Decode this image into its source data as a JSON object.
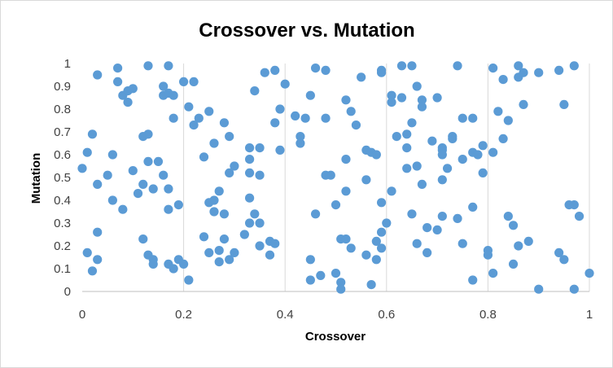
{
  "chart_data": {
    "type": "scatter",
    "title": "Crossover vs. Mutation",
    "xlabel": "Crossover",
    "ylabel": "Mutation",
    "xlim": [
      0,
      1
    ],
    "ylim": [
      0,
      1
    ],
    "x_ticks": [
      "0",
      "0.2",
      "0.4",
      "0.6",
      "0.8",
      "1"
    ],
    "y_ticks": [
      "0",
      "0.1",
      "0.2",
      "0.3",
      "0.4",
      "0.5",
      "0.6",
      "0.7",
      "0.8",
      "0.9",
      "1"
    ],
    "grid": "vertical major gridlines",
    "legend": "none",
    "marker_color": "#5b9bd5",
    "series": [
      {
        "points": [
          [
            0.0,
            0.54
          ],
          [
            0.01,
            0.61
          ],
          [
            0.01,
            0.17
          ],
          [
            0.02,
            0.09
          ],
          [
            0.02,
            0.69
          ],
          [
            0.03,
            0.95
          ],
          [
            0.03,
            0.47
          ],
          [
            0.03,
            0.26
          ],
          [
            0.03,
            0.14
          ],
          [
            0.05,
            0.51
          ],
          [
            0.06,
            0.6
          ],
          [
            0.06,
            0.4
          ],
          [
            0.07,
            0.98
          ],
          [
            0.07,
            0.92
          ],
          [
            0.08,
            0.86
          ],
          [
            0.08,
            0.36
          ],
          [
            0.09,
            0.83
          ],
          [
            0.09,
            0.88
          ],
          [
            0.1,
            0.89
          ],
          [
            0.1,
            0.53
          ],
          [
            0.11,
            0.43
          ],
          [
            0.12,
            0.68
          ],
          [
            0.12,
            0.47
          ],
          [
            0.12,
            0.23
          ],
          [
            0.13,
            0.69
          ],
          [
            0.13,
            0.99
          ],
          [
            0.13,
            0.57
          ],
          [
            0.13,
            0.16
          ],
          [
            0.14,
            0.45
          ],
          [
            0.14,
            0.14
          ],
          [
            0.14,
            0.12
          ],
          [
            0.15,
            0.57
          ],
          [
            0.16,
            0.9
          ],
          [
            0.16,
            0.51
          ],
          [
            0.16,
            0.86
          ],
          [
            0.17,
            0.36
          ],
          [
            0.17,
            0.45
          ],
          [
            0.17,
            0.99
          ],
          [
            0.17,
            0.87
          ],
          [
            0.17,
            0.12
          ],
          [
            0.18,
            0.86
          ],
          [
            0.18,
            0.76
          ],
          [
            0.18,
            0.1
          ],
          [
            0.19,
            0.14
          ],
          [
            0.19,
            0.38
          ],
          [
            0.2,
            0.12
          ],
          [
            0.2,
            0.92
          ],
          [
            0.21,
            0.81
          ],
          [
            0.21,
            0.05
          ],
          [
            0.22,
            0.73
          ],
          [
            0.22,
            0.92
          ],
          [
            0.23,
            0.76
          ],
          [
            0.24,
            0.24
          ],
          [
            0.24,
            0.59
          ],
          [
            0.25,
            0.79
          ],
          [
            0.25,
            0.17
          ],
          [
            0.25,
            0.39
          ],
          [
            0.26,
            0.35
          ],
          [
            0.26,
            0.65
          ],
          [
            0.26,
            0.4
          ],
          [
            0.27,
            0.13
          ],
          [
            0.27,
            0.18
          ],
          [
            0.27,
            0.44
          ],
          [
            0.28,
            0.34
          ],
          [
            0.28,
            0.23
          ],
          [
            0.28,
            0.74
          ],
          [
            0.29,
            0.52
          ],
          [
            0.29,
            0.14
          ],
          [
            0.29,
            0.68
          ],
          [
            0.3,
            0.55
          ],
          [
            0.3,
            0.17
          ],
          [
            0.32,
            0.25
          ],
          [
            0.33,
            0.63
          ],
          [
            0.33,
            0.58
          ],
          [
            0.33,
            0.52
          ],
          [
            0.33,
            0.41
          ],
          [
            0.33,
            0.3
          ],
          [
            0.34,
            0.34
          ],
          [
            0.34,
            0.88
          ],
          [
            0.35,
            0.2
          ],
          [
            0.35,
            0.3
          ],
          [
            0.35,
            0.63
          ],
          [
            0.35,
            0.51
          ],
          [
            0.36,
            0.96
          ],
          [
            0.37,
            0.22
          ],
          [
            0.37,
            0.16
          ],
          [
            0.38,
            0.21
          ],
          [
            0.38,
            0.97
          ],
          [
            0.38,
            0.74
          ],
          [
            0.39,
            0.62
          ],
          [
            0.39,
            0.8
          ],
          [
            0.4,
            0.91
          ],
          [
            0.42,
            0.77
          ],
          [
            0.43,
            0.68
          ],
          [
            0.43,
            0.65
          ],
          [
            0.44,
            0.76
          ],
          [
            0.45,
            0.86
          ],
          [
            0.45,
            0.14
          ],
          [
            0.45,
            0.05
          ],
          [
            0.46,
            0.98
          ],
          [
            0.46,
            0.34
          ],
          [
            0.47,
            0.07
          ],
          [
            0.48,
            0.97
          ],
          [
            0.48,
            0.76
          ],
          [
            0.48,
            0.51
          ],
          [
            0.49,
            0.51
          ],
          [
            0.5,
            0.38
          ],
          [
            0.5,
            0.08
          ],
          [
            0.51,
            0.23
          ],
          [
            0.51,
            0.04
          ],
          [
            0.51,
            0.01
          ],
          [
            0.52,
            0.23
          ],
          [
            0.52,
            0.84
          ],
          [
            0.52,
            0.58
          ],
          [
            0.52,
            0.44
          ],
          [
            0.53,
            0.79
          ],
          [
            0.53,
            0.19
          ],
          [
            0.54,
            0.73
          ],
          [
            0.55,
            0.94
          ],
          [
            0.56,
            0.62
          ],
          [
            0.56,
            0.49
          ],
          [
            0.56,
            0.16
          ],
          [
            0.57,
            0.61
          ],
          [
            0.57,
            0.03
          ],
          [
            0.58,
            0.6
          ],
          [
            0.58,
            0.22
          ],
          [
            0.58,
            0.14
          ],
          [
            0.59,
            0.97
          ],
          [
            0.59,
            0.19
          ],
          [
            0.59,
            0.96
          ],
          [
            0.59,
            0.39
          ],
          [
            0.59,
            0.26
          ],
          [
            0.6,
            0.3
          ],
          [
            0.61,
            0.86
          ],
          [
            0.61,
            0.83
          ],
          [
            0.61,
            0.44
          ],
          [
            0.62,
            0.68
          ],
          [
            0.63,
            0.99
          ],
          [
            0.63,
            0.85
          ],
          [
            0.64,
            0.63
          ],
          [
            0.64,
            0.69
          ],
          [
            0.64,
            0.54
          ],
          [
            0.65,
            0.99
          ],
          [
            0.65,
            0.74
          ],
          [
            0.65,
            0.34
          ],
          [
            0.66,
            0.55
          ],
          [
            0.66,
            0.9
          ],
          [
            0.66,
            0.21
          ],
          [
            0.67,
            0.47
          ],
          [
            0.67,
            0.84
          ],
          [
            0.67,
            0.81
          ],
          [
            0.68,
            0.17
          ],
          [
            0.68,
            0.28
          ],
          [
            0.69,
            0.66
          ],
          [
            0.7,
            0.85
          ],
          [
            0.7,
            0.27
          ],
          [
            0.71,
            0.63
          ],
          [
            0.71,
            0.62
          ],
          [
            0.71,
            0.49
          ],
          [
            0.71,
            0.6
          ],
          [
            0.71,
            0.33
          ],
          [
            0.72,
            0.54
          ],
          [
            0.73,
            0.67
          ],
          [
            0.73,
            0.68
          ],
          [
            0.74,
            0.99
          ],
          [
            0.74,
            0.32
          ],
          [
            0.75,
            0.76
          ],
          [
            0.75,
            0.58
          ],
          [
            0.75,
            0.21
          ],
          [
            0.77,
            0.76
          ],
          [
            0.77,
            0.61
          ],
          [
            0.77,
            0.37
          ],
          [
            0.77,
            0.05
          ],
          [
            0.78,
            0.6
          ],
          [
            0.79,
            0.64
          ],
          [
            0.79,
            0.52
          ],
          [
            0.8,
            0.16
          ],
          [
            0.8,
            0.18
          ],
          [
            0.81,
            0.61
          ],
          [
            0.81,
            0.08
          ],
          [
            0.81,
            0.98
          ],
          [
            0.82,
            0.79
          ],
          [
            0.83,
            0.67
          ],
          [
            0.83,
            0.93
          ],
          [
            0.84,
            0.75
          ],
          [
            0.84,
            0.33
          ],
          [
            0.85,
            0.29
          ],
          [
            0.85,
            0.12
          ],
          [
            0.86,
            0.2
          ],
          [
            0.86,
            0.99
          ],
          [
            0.86,
            0.94
          ],
          [
            0.87,
            0.96
          ],
          [
            0.87,
            0.82
          ],
          [
            0.88,
            0.22
          ],
          [
            0.9,
            0.01
          ],
          [
            0.9,
            0.96
          ],
          [
            0.94,
            0.97
          ],
          [
            0.94,
            0.17
          ],
          [
            0.95,
            0.82
          ],
          [
            0.95,
            0.14
          ],
          [
            0.96,
            0.38
          ],
          [
            0.97,
            0.99
          ],
          [
            0.97,
            0.38
          ],
          [
            0.97,
            0.01
          ],
          [
            0.98,
            0.33
          ],
          [
            1.0,
            0.08
          ]
        ]
      }
    ]
  }
}
